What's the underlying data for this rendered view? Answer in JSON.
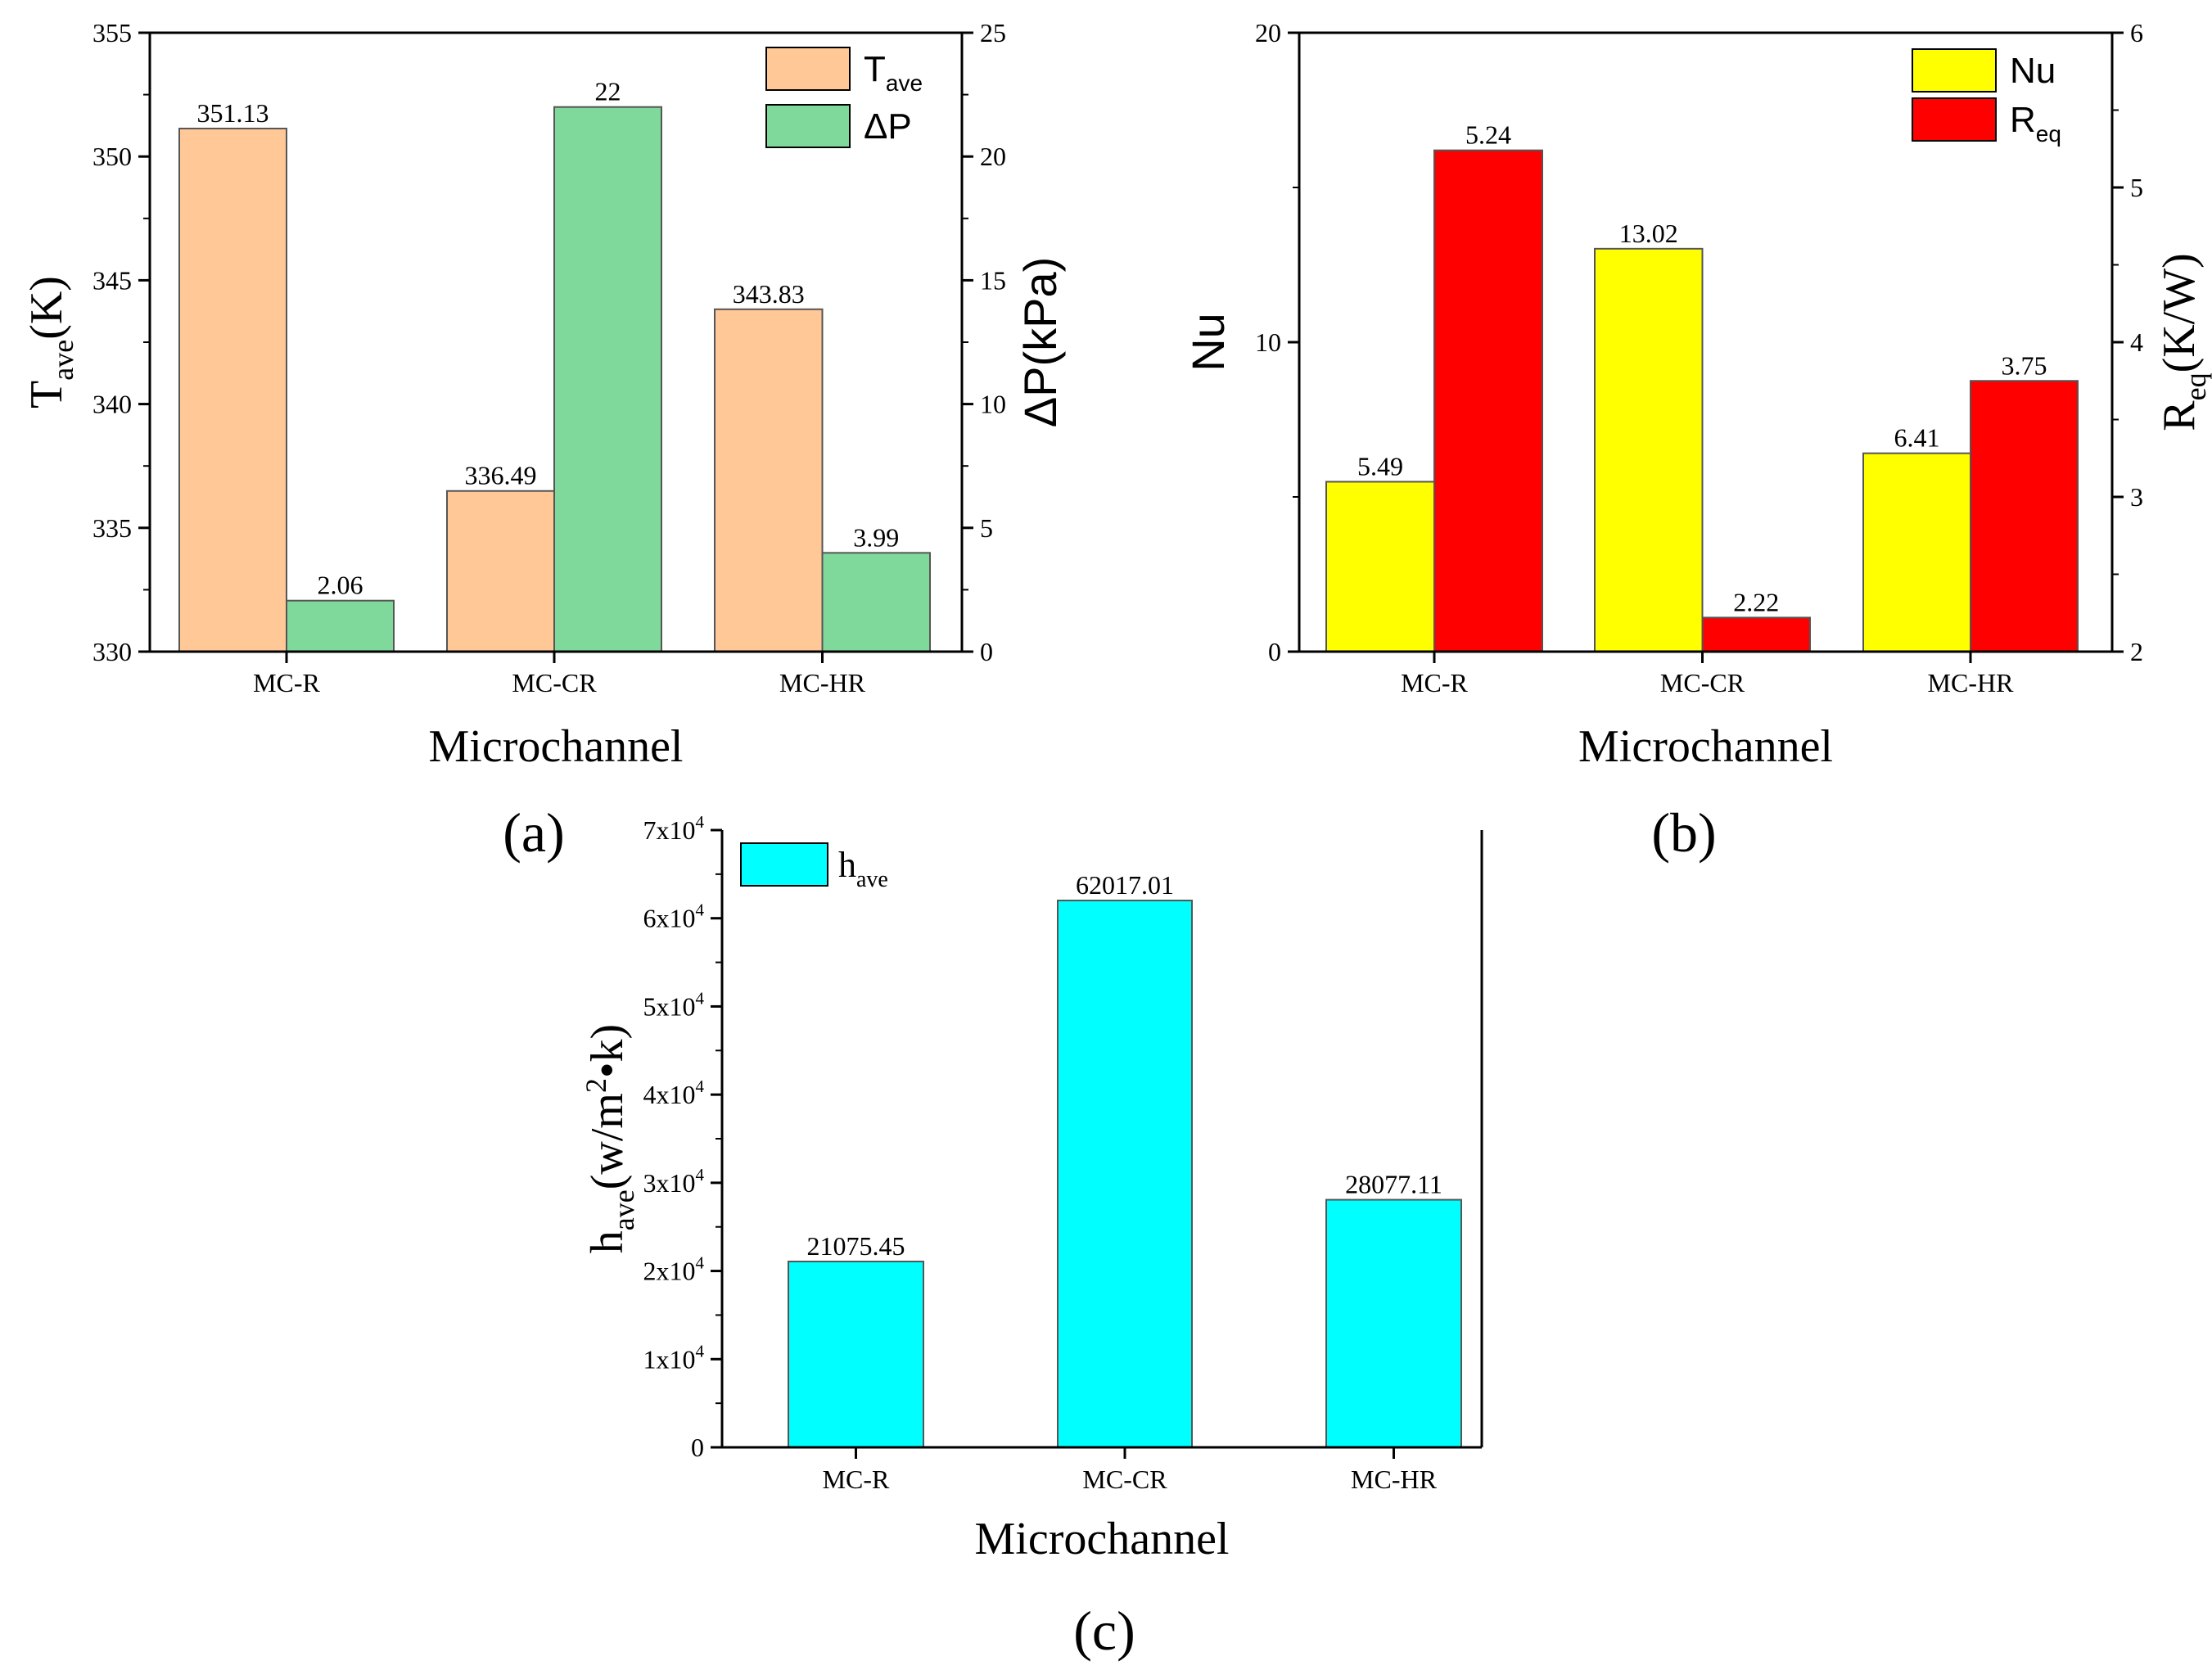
{
  "colors": {
    "t_ave": "#FFC896",
    "delta_p": "#7FD99A",
    "nu": "#FFFF00",
    "r_eq": "#FF0000",
    "h_ave": "#00FFFF",
    "bar_edge": "#555555",
    "axis": "#000000"
  },
  "panel_labels": {
    "a": "(a)",
    "b": "(b)",
    "c": "(c)"
  },
  "chart_data": [
    {
      "id": "a",
      "type": "bar",
      "xlabel": "Microchannel",
      "categories": [
        "MC-R",
        "MC-CR",
        "MC-HR"
      ],
      "y_left": {
        "label_main": "T",
        "label_sub": "ave",
        "label_tail": "(K)",
        "lim": [
          330,
          355
        ],
        "ticks": [
          330,
          335,
          340,
          345,
          350,
          355
        ],
        "tick_labels": [
          "330",
          "335",
          "340",
          "345",
          "350",
          "355"
        ]
      },
      "y_right": {
        "label_main": "ΔP(kPa)",
        "label_sub": "",
        "label_tail": "",
        "lim": [
          0,
          25
        ],
        "ticks": [
          0,
          5,
          10,
          15,
          20,
          25
        ],
        "tick_labels": [
          "0",
          "5",
          "10",
          "15",
          "20",
          "25"
        ]
      },
      "series": [
        {
          "name": "T",
          "name_sub": "ave",
          "axis": "left",
          "color_key": "t_ave",
          "values": [
            351.13,
            336.49,
            343.83
          ],
          "labels": [
            "351.13",
            "336.49",
            "343.83"
          ]
        },
        {
          "name": "ΔP",
          "name_sub": "",
          "axis": "right",
          "color_key": "delta_p",
          "values": [
            2.06,
            22,
            3.99
          ],
          "labels": [
            "2.06",
            "22",
            "3.99"
          ]
        }
      ],
      "legend_position": "top-right"
    },
    {
      "id": "b",
      "type": "bar",
      "xlabel": "Microchannel",
      "categories": [
        "MC-R",
        "MC-CR",
        "MC-HR"
      ],
      "y_left": {
        "label_main": "Nu",
        "label_sub": "",
        "label_tail": "",
        "lim": [
          0,
          20
        ],
        "ticks": [
          0,
          10,
          20
        ],
        "tick_labels": [
          "0",
          "10",
          "20"
        ]
      },
      "y_right": {
        "label_main": "R",
        "label_sub": "eq",
        "label_tail": "(K/W)",
        "lim": [
          2,
          6
        ],
        "ticks": [
          2,
          3,
          4,
          5,
          6
        ],
        "tick_labels": [
          "2",
          "3",
          "4",
          "5",
          "6"
        ]
      },
      "series": [
        {
          "name": "Nu",
          "name_sub": "",
          "axis": "left",
          "color_key": "nu",
          "values": [
            5.49,
            13.02,
            6.41
          ],
          "labels": [
            "5.49",
            "13.02",
            "6.41"
          ]
        },
        {
          "name": "R",
          "name_sub": "eq",
          "axis": "right",
          "color_key": "r_eq",
          "values": [
            5.24,
            2.22,
            3.75
          ],
          "labels": [
            "5.24",
            "2.22",
            "3.75"
          ]
        }
      ],
      "legend_position": "top-right"
    },
    {
      "id": "c",
      "type": "bar",
      "xlabel": "Microchannel",
      "categories": [
        "MC-R",
        "MC-CR",
        "MC-HR"
      ],
      "y_left": {
        "label_main": "h",
        "label_sub": "ave",
        "label_tail": "(w/m",
        "label_sup": "2",
        "label_end": "•k)",
        "lim": [
          0,
          70000
        ],
        "ticks": [
          0,
          10000,
          20000,
          30000,
          40000,
          50000,
          60000,
          70000
        ],
        "tick_labels": [
          {
            "base": "0",
            "exp": ""
          },
          {
            "base": "1x10",
            "exp": "4"
          },
          {
            "base": "2x10",
            "exp": "4"
          },
          {
            "base": "3x10",
            "exp": "4"
          },
          {
            "base": "4x10",
            "exp": "4"
          },
          {
            "base": "5x10",
            "exp": "4"
          },
          {
            "base": "6x10",
            "exp": "4"
          },
          {
            "base": "7x10",
            "exp": "4"
          }
        ]
      },
      "series": [
        {
          "name": "h",
          "name_sub": "ave",
          "axis": "left",
          "color_key": "h_ave",
          "values": [
            21075.45,
            62017.01,
            28077.11
          ],
          "labels": [
            "21075.45",
            "62017.01",
            "28077.11"
          ]
        }
      ],
      "legend_position": "top-left"
    }
  ]
}
